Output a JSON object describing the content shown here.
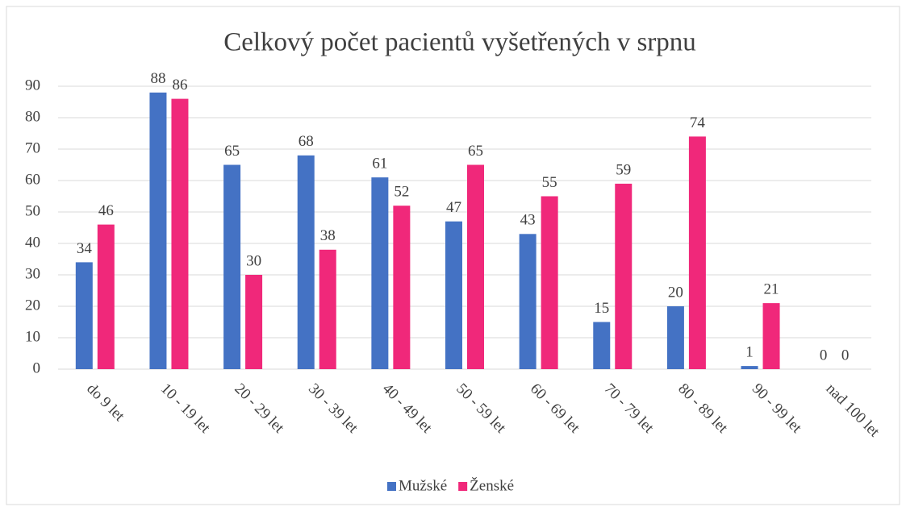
{
  "chart_data": {
    "type": "bar",
    "title": "Celkový počet pacientů vyšetřených v srpnu",
    "categories": [
      "do 9 let",
      "10 - 19 let",
      "20 - 29 let",
      "30 - 39 let",
      "40 - 49 let",
      "50 - 59 let",
      "60 - 69 let",
      "70 - 79 let",
      "80 - 89 let",
      "90 - 99 let",
      "nad 100 let"
    ],
    "series": [
      {
        "name": "Mužské",
        "color": "#4472c4",
        "values": [
          34,
          88,
          65,
          68,
          61,
          47,
          43,
          15,
          20,
          1,
          0
        ]
      },
      {
        "name": "Ženské",
        "color": "#f0287a",
        "values": [
          46,
          86,
          30,
          38,
          52,
          65,
          55,
          59,
          74,
          21,
          0
        ]
      }
    ],
    "ylim": [
      0,
      90
    ],
    "yticks": [
      0,
      10,
      20,
      30,
      40,
      50,
      60,
      70,
      80,
      90
    ],
    "grid": true,
    "legend": "bottom"
  }
}
